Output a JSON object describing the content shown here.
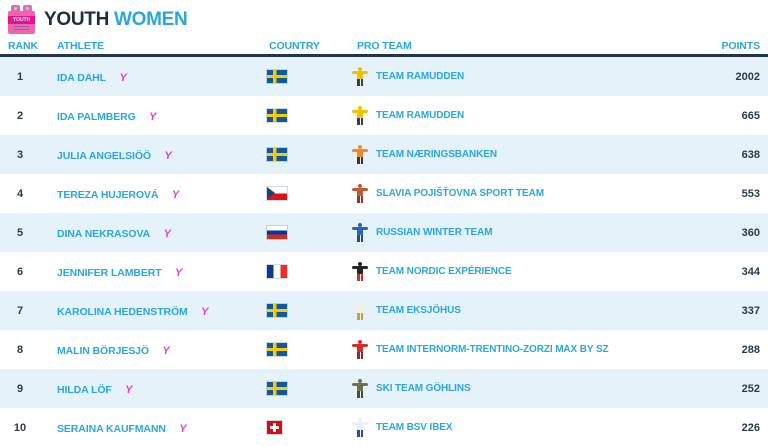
{
  "colors": {
    "accent_blue": "#2AA7E0",
    "navy": "#22354A",
    "youth_magenta": "#E93AE0",
    "logo_pink": "#F263AE",
    "logo_band_pink": "#E8128A",
    "row_alt_bg": "#E5F2FA"
  },
  "header": {
    "title_primary": "YOUTH",
    "title_secondary": "WOMEN",
    "logo_icon": "youth-race-bib-icon",
    "logo_text": "YOUTH"
  },
  "table": {
    "columns": {
      "rank": "RANK",
      "athlete": "ATHLETE",
      "country": "COUNTRY",
      "pro_team": "PRO TEAM",
      "points": "POINTS"
    },
    "rows": [
      {
        "rank": "1",
        "athlete": "IDA DAHL",
        "badge": "Y",
        "flag": "sweden",
        "team": "TEAM RAMUDDEN",
        "points": "2002",
        "kit_top": "#F2C200",
        "kit_bottom": "#3C3C46"
      },
      {
        "rank": "2",
        "athlete": "IDA PALMBERG",
        "badge": "Y",
        "flag": "sweden",
        "team": "TEAM RAMUDDEN",
        "points": "665",
        "kit_top": "#F2C200",
        "kit_bottom": "#3C3C46"
      },
      {
        "rank": "3",
        "athlete": "JULIA ANGELSIÖÖ",
        "badge": "Y",
        "flag": "sweden",
        "team": "TEAM NÆRINGSBANKEN",
        "points": "638",
        "kit_top": "#F08A28",
        "kit_bottom": "#46321E"
      },
      {
        "rank": "4",
        "athlete": "TEREZA HUJEROVÁ",
        "badge": "Y",
        "flag": "czech-republic",
        "team": "SLAVIA POJIŠŤOVNA SPORT TEAM",
        "points": "553",
        "kit_top": "#BE5B32",
        "kit_bottom": "#97342A"
      },
      {
        "rank": "5",
        "athlete": "DINA NEKRASOVA",
        "badge": "Y",
        "flag": "russia",
        "team": "RUSSIAN WINTER TEAM",
        "points": "360",
        "kit_top": "#2F62B4",
        "kit_bottom": "#234B8E"
      },
      {
        "rank": "6",
        "athlete": "JENNIFER LAMBERT",
        "badge": "Y",
        "flag": "france",
        "team": "TEAM NORDIC EXPÉRIENCE",
        "points": "344",
        "kit_top": "#23222C",
        "kit_bottom": "#CE2B2B"
      },
      {
        "rank": "7",
        "athlete": "KAROLINA HEDENSTRÖM",
        "badge": "Y",
        "flag": "sweden",
        "team": "TEAM EKSJÖHUS",
        "points": "337",
        "kit_top": "#F3EFE2",
        "kit_bottom": "#C8A22C"
      },
      {
        "rank": "8",
        "athlete": "MALIN BÖRJESJÖ",
        "badge": "Y",
        "flag": "sweden",
        "team": "TEAM INTERNORM-TRENTINO-ZORZI MAX BY SZ",
        "points": "288",
        "kit_top": "#D42D2D",
        "kit_bottom": "#A32222"
      },
      {
        "rank": "9",
        "athlete": "HILDA LÖF",
        "badge": "Y",
        "flag": "sweden",
        "team": "SKI TEAM GÖHLINS",
        "points": "252",
        "kit_top": "#70704C",
        "kit_bottom": "#4C4C38"
      },
      {
        "rank": "10",
        "athlete": "SERAINA KAUFMANN",
        "badge": "Y",
        "flag": "switzerland",
        "team": "TEAM BSV IBEX",
        "points": "226",
        "kit_top": "#E9EEF3",
        "kit_bottom": "#2E4E9C"
      }
    ]
  }
}
